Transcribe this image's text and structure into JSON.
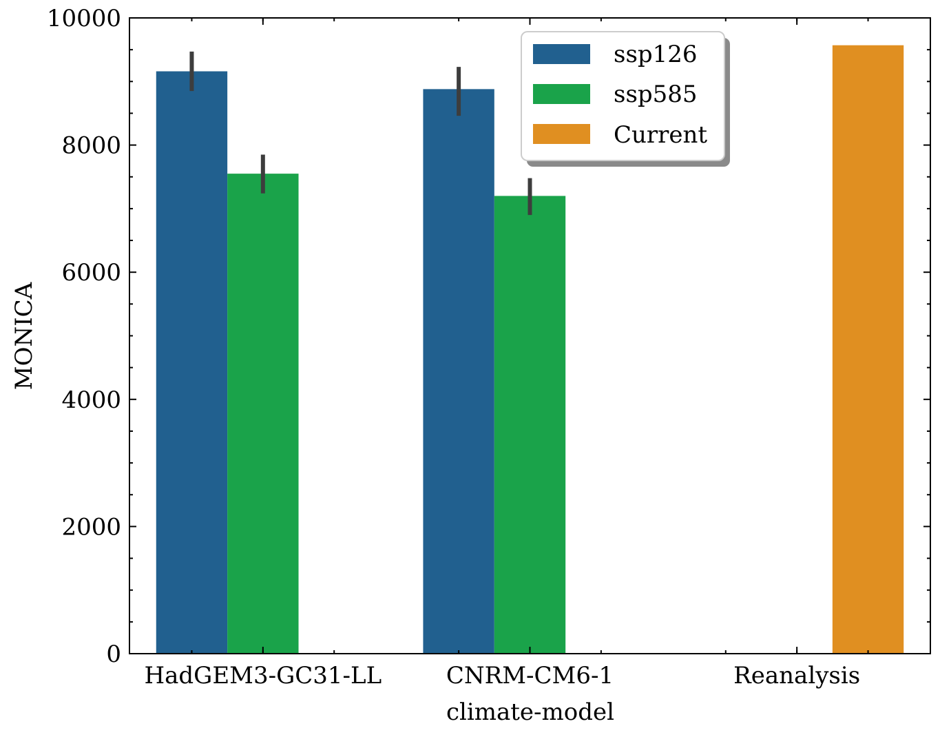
{
  "chart_data": {
    "type": "bar",
    "title": "",
    "xlabel": "climate-model",
    "ylabel": "MONICA",
    "categories": [
      "HadGEM3-GC31-LL",
      "CNRM-CM6-1",
      "Reanalysis"
    ],
    "ylim": [
      0,
      10000
    ],
    "yticks": [
      "0",
      "2000",
      "4000",
      "6000",
      "8000",
      "10000"
    ],
    "grid": false,
    "legend_position": "top-center",
    "series": [
      {
        "name": "ssp126",
        "color": "#21608f",
        "values": [
          9160,
          8880,
          null
        ],
        "error_low": [
          8850,
          8460,
          null
        ],
        "error_high": [
          9470,
          9230,
          null
        ]
      },
      {
        "name": "ssp585",
        "color": "#1aa34a",
        "values": [
          7550,
          7200,
          null
        ],
        "error_low": [
          7240,
          6900,
          null
        ],
        "error_high": [
          7850,
          7480,
          null
        ]
      },
      {
        "name": "Current",
        "color": "#e08f21",
        "values": [
          null,
          null,
          9570
        ],
        "error_low": [
          null,
          null,
          null
        ],
        "error_high": [
          null,
          null,
          null
        ]
      }
    ]
  }
}
